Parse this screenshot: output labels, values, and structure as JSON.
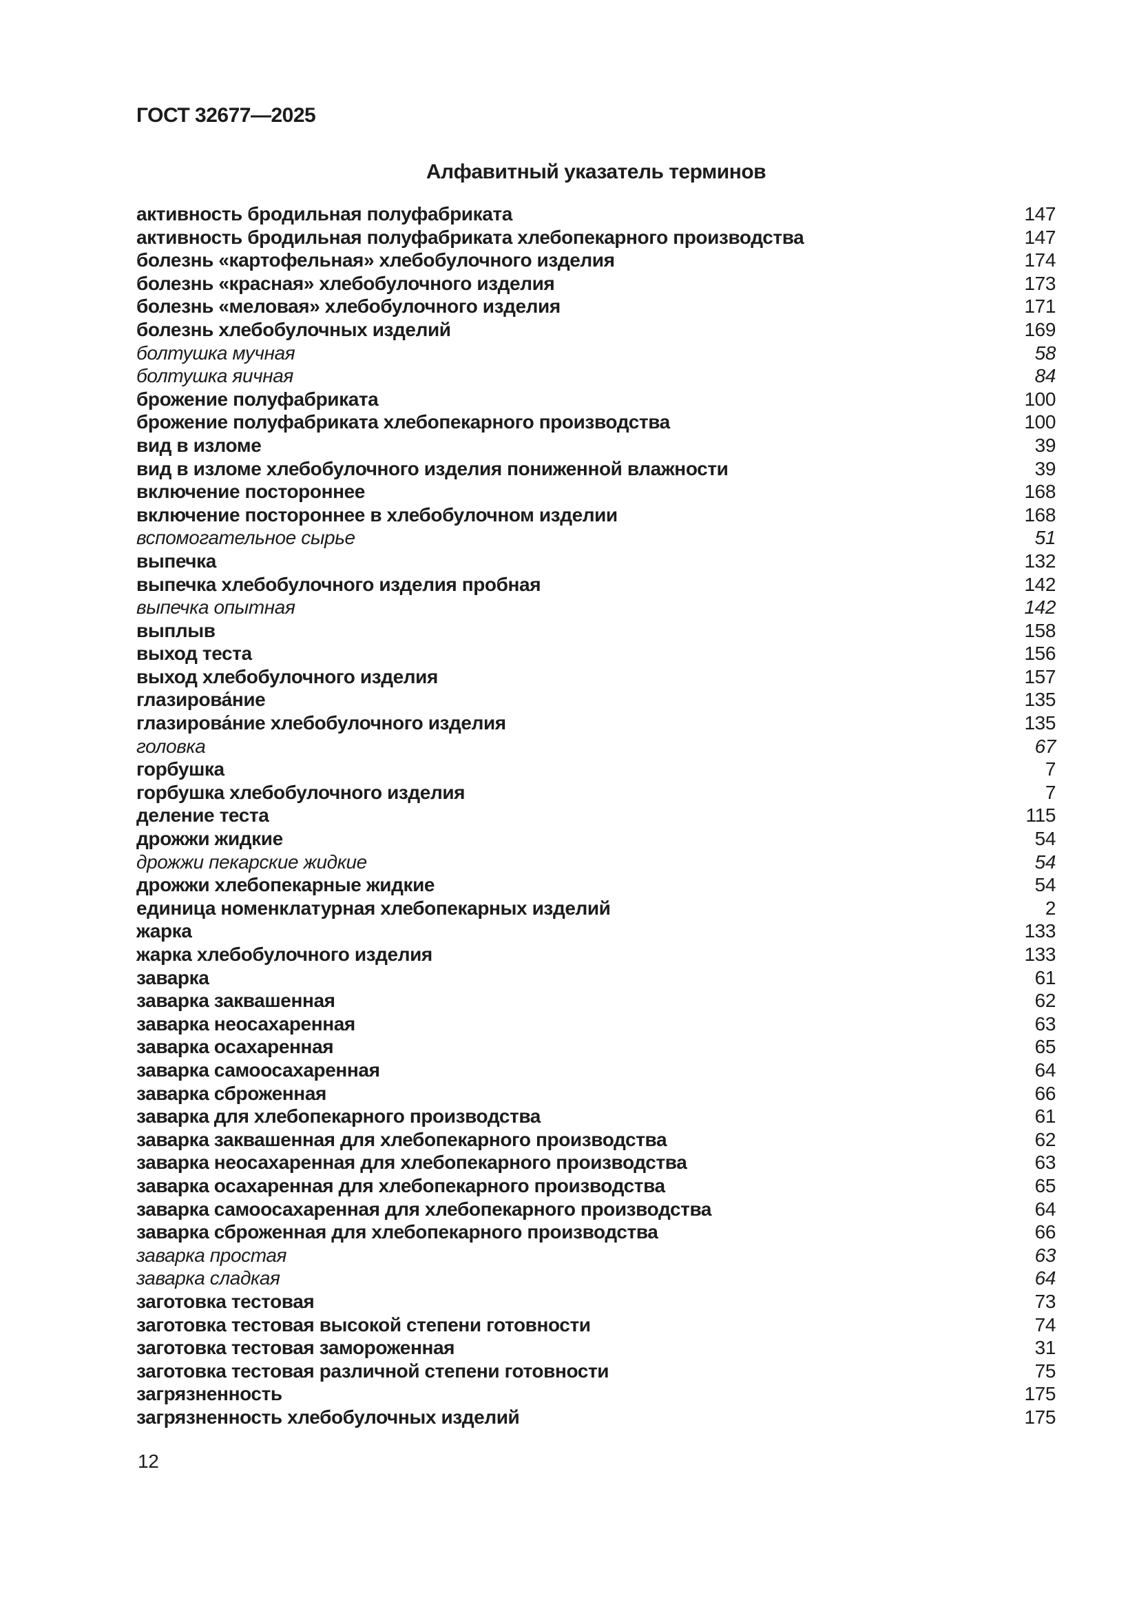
{
  "page": {
    "header": "ГОСТ 32677—2025",
    "title": "Алфавитный указатель терминов",
    "footer_page_number": "12"
  },
  "colors": {
    "background": "#ffffff",
    "text": "#1c1c1e"
  },
  "index_entries": [
    {
      "term": "активность бродильная полуфабриката",
      "page": "147",
      "style": "bold"
    },
    {
      "term": "активность бродильная полуфабриката хлебопекарного производства",
      "page": "147",
      "style": "bold"
    },
    {
      "term": "болезнь «картофельная» хлебобулочного изделия",
      "page": "174",
      "style": "bold"
    },
    {
      "term": "болезнь «красная» хлебобулочного изделия",
      "page": "173",
      "style": "bold"
    },
    {
      "term": "болезнь «меловая» хлебобулочного изделия",
      "page": "171",
      "style": "bold"
    },
    {
      "term": "болезнь хлебобулочных изделий",
      "page": "169",
      "style": "bold"
    },
    {
      "term": "болтушка мучная",
      "page": "58",
      "style": "italic"
    },
    {
      "term": "болтушка яичная",
      "page": "84",
      "style": "italic"
    },
    {
      "term": "брожение полуфабриката",
      "page": "100",
      "style": "bold"
    },
    {
      "term": "брожение полуфабриката хлебопекарного производства",
      "page": "100",
      "style": "bold"
    },
    {
      "term": "вид в изломе",
      "page": "39",
      "style": "bold"
    },
    {
      "term": "вид в изломе хлебобулочного изделия пониженной влажности",
      "page": "39",
      "style": "bold"
    },
    {
      "term": "включение постороннее",
      "page": "168",
      "style": "bold"
    },
    {
      "term": "включение постороннее в хлебобулочном изделии",
      "page": "168",
      "style": "bold"
    },
    {
      "term": "вспомогательное сырье",
      "page": "51",
      "style": "italic"
    },
    {
      "term": "выпечка",
      "page": "132",
      "style": "bold"
    },
    {
      "term": "выпечка хлебобулочного изделия пробная",
      "page": "142",
      "style": "bold"
    },
    {
      "term": "выпечка опытная",
      "page": "142",
      "style": "italic"
    },
    {
      "term": "выплыв",
      "page": "158",
      "style": "bold"
    },
    {
      "term": "выход теста",
      "page": "156",
      "style": "bold"
    },
    {
      "term": "выход хлебобулочного изделия",
      "page": "157",
      "style": "bold"
    },
    {
      "term": "глазирова́ние",
      "page": "135",
      "style": "bold"
    },
    {
      "term": "глазирова́ние хлебобулочного изделия",
      "page": "135",
      "style": "bold"
    },
    {
      "term": "головка",
      "page": "67",
      "style": "italic"
    },
    {
      "term": "горбушка",
      "page": "7",
      "style": "bold"
    },
    {
      "term": "горбушка хлебобулочного изделия",
      "page": "7",
      "style": "bold"
    },
    {
      "term": "деление теста",
      "page": "115",
      "style": "bold"
    },
    {
      "term": "дрожжи жидкие",
      "page": "54",
      "style": "bold"
    },
    {
      "term": "дрожжи пекарские жидкие",
      "page": "54",
      "style": "italic"
    },
    {
      "term": "дрожжи хлебопекарные жидкие",
      "page": "54",
      "style": "bold"
    },
    {
      "term": "единица номенклатурная хлебопекарных изделий",
      "page": "2",
      "style": "bold"
    },
    {
      "term": "жарка",
      "page": "133",
      "style": "bold"
    },
    {
      "term": "жарка хлебобулочного изделия",
      "page": "133",
      "style": "bold"
    },
    {
      "term": "заварка",
      "page": "61",
      "style": "bold"
    },
    {
      "term": "заварка заквашенная",
      "page": "62",
      "style": "bold"
    },
    {
      "term": "заварка неосахаренная",
      "page": "63",
      "style": "bold"
    },
    {
      "term": "заварка осахаренная",
      "page": "65",
      "style": "bold"
    },
    {
      "term": "заварка самоосахаренная",
      "page": "64",
      "style": "bold"
    },
    {
      "term": "заварка сброженная",
      "page": "66",
      "style": "bold"
    },
    {
      "term": "заварка для хлебопекарного производства",
      "page": "61",
      "style": "bold"
    },
    {
      "term": "заварка заквашенная для хлебопекарного производства",
      "page": "62",
      "style": "bold"
    },
    {
      "term": "заварка неосахаренная для хлебопекарного производства",
      "page": "63",
      "style": "bold"
    },
    {
      "term": "заварка осахаренная для хлебопекарного производства",
      "page": "65",
      "style": "bold"
    },
    {
      "term": "заварка самоосахаренная для хлебопекарного производства",
      "page": "64",
      "style": "bold"
    },
    {
      "term": "заварка сброженная для хлебопекарного производства",
      "page": "66",
      "style": "bold"
    },
    {
      "term": "заварка простая",
      "page": "63",
      "style": "italic"
    },
    {
      "term": "заварка сладкая",
      "page": "64",
      "style": "italic"
    },
    {
      "term": "заготовка тестовая",
      "page": "73",
      "style": "bold"
    },
    {
      "term": "заготовка тестовая высокой степени готовности",
      "page": "74",
      "style": "bold"
    },
    {
      "term": "заготовка тестовая замороженная",
      "page": "31",
      "style": "bold"
    },
    {
      "term": "заготовка тестовая различной степени готовности",
      "page": "75",
      "style": "bold"
    },
    {
      "term": "загрязненность",
      "page": "175",
      "style": "bold"
    },
    {
      "term": "загрязненность хлебобулочных изделий",
      "page": "175",
      "style": "bold"
    }
  ]
}
